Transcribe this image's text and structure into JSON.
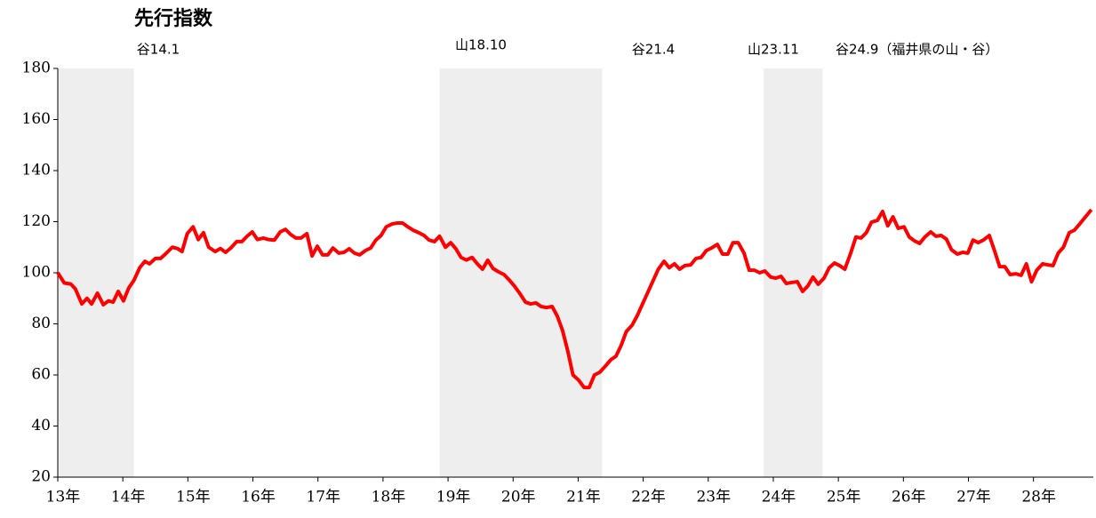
{
  "chart_data": {
    "type": "line",
    "title": "先行指数",
    "annotations": [
      "谷14.1",
      "山18.10",
      "谷21.4",
      "山23.11",
      "谷24.9（福井県の山・谷）"
    ],
    "shaded_periods": [
      [
        13,
        14.17
      ],
      [
        18.87,
        21.37
      ],
      [
        23.85,
        24.76
      ]
    ],
    "shade_color": "#eeeeee",
    "color": "#ff0000",
    "xlim": [
      13,
      28.92
    ],
    "xticks": [
      {
        "value": 13,
        "label": "13年"
      },
      {
        "value": 14,
        "label": "14年"
      },
      {
        "value": 15,
        "label": "15年"
      },
      {
        "value": 16,
        "label": "16年"
      },
      {
        "value": 17,
        "label": "17年"
      },
      {
        "value": 18,
        "label": "18年"
      },
      {
        "value": 19,
        "label": "19年"
      },
      {
        "value": 20,
        "label": "20年"
      },
      {
        "value": 21,
        "label": "21年"
      },
      {
        "value": 22,
        "label": "22年"
      },
      {
        "value": 23,
        "label": "23年"
      },
      {
        "value": 24,
        "label": "24年"
      },
      {
        "value": 25,
        "label": "25年"
      },
      {
        "value": 26,
        "label": "26年"
      },
      {
        "value": 27,
        "label": "27年"
      },
      {
        "value": 28,
        "label": "28年"
      }
    ],
    "ylim": [
      20,
      180
    ],
    "yticks": [
      20,
      40,
      60,
      80,
      100,
      120,
      140,
      160,
      180
    ],
    "x": [
      13.0,
      13.1,
      13.2,
      13.27,
      13.37,
      13.45,
      13.52,
      13.61,
      13.7,
      13.78,
      13.85,
      13.93,
      14.01,
      14.09,
      14.17,
      14.26,
      14.34,
      14.41,
      14.5,
      14.58,
      14.67,
      14.76,
      14.84,
      14.91,
      14.99,
      15.08,
      15.16,
      15.24,
      15.32,
      15.42,
      15.5,
      15.58,
      15.66,
      15.75,
      15.83,
      15.91,
      15.99,
      16.07,
      16.16,
      16.24,
      16.33,
      16.42,
      16.5,
      16.58,
      16.66,
      16.74,
      16.83,
      16.91,
      16.99,
      17.07,
      17.15,
      17.23,
      17.32,
      17.4,
      17.48,
      17.56,
      17.64,
      17.73,
      17.81,
      17.89,
      17.97,
      18.05,
      18.14,
      18.22,
      18.3,
      18.38,
      18.46,
      18.55,
      18.63,
      18.71,
      18.79,
      18.87,
      18.96,
      19.04,
      19.12,
      19.2,
      19.28,
      19.37,
      19.45,
      19.53,
      19.61,
      19.69,
      19.78,
      19.86,
      19.94,
      20.02,
      20.1,
      20.19,
      20.27,
      20.35,
      20.43,
      20.51,
      20.6,
      20.68,
      20.76,
      20.84,
      20.92,
      21.01,
      21.09,
      21.17,
      21.25,
      21.33,
      21.42,
      21.5,
      21.58,
      21.66,
      21.74,
      21.83,
      21.91,
      21.99,
      22.07,
      22.15,
      22.23,
      22.32,
      22.4,
      22.48,
      22.56,
      22.64,
      22.73,
      22.81,
      22.89,
      22.97,
      23.05,
      23.14,
      23.22,
      23.3,
      23.38,
      23.46,
      23.55,
      23.63,
      23.71,
      23.79,
      23.87,
      23.96,
      24.04,
      24.12,
      24.2,
      24.28,
      24.37,
      24.45,
      24.53,
      24.61,
      24.69,
      24.78,
      24.86,
      24.94,
      25.02,
      25.1,
      25.19,
      25.27,
      25.35,
      25.43,
      25.51,
      25.6,
      25.68,
      25.76,
      25.84,
      25.92,
      26.01,
      26.09,
      26.17,
      26.25,
      26.33,
      26.42,
      26.5,
      26.58,
      26.66,
      26.74,
      26.83,
      26.91,
      26.99,
      27.07,
      27.15,
      27.23,
      27.32,
      27.4,
      27.48,
      27.56,
      27.64,
      27.73,
      27.81,
      27.89,
      27.97,
      28.05,
      28.14,
      28.22,
      28.3,
      28.38,
      28.46,
      28.55,
      28.63,
      28.71,
      28.79,
      28.89
    ],
    "values": [
      100,
      96,
      95.6,
      93.7,
      87.8,
      90,
      87.8,
      92,
      87.5,
      89,
      88.5,
      92.7,
      89,
      94,
      97,
      102,
      104.5,
      103.5,
      105.6,
      105.6,
      107.7,
      110,
      109.5,
      108.3,
      115.3,
      118,
      113,
      115.7,
      110,
      108.3,
      109.5,
      108,
      109.7,
      112.2,
      112.2,
      114.3,
      116,
      113,
      113.6,
      113,
      112.8,
      116,
      117,
      115,
      113.6,
      113.6,
      115.3,
      106.6,
      110.4,
      107,
      107,
      109.7,
      107.7,
      108,
      109.4,
      107.7,
      107,
      108.7,
      109.7,
      112.8,
      114.6,
      118,
      119.1,
      119.5,
      119.5,
      118,
      116.7,
      115.7,
      114.6,
      112.8,
      112.2,
      114.3,
      110,
      111.8,
      109.4,
      106,
      105,
      106,
      103.5,
      101.4,
      104.9,
      101.7,
      100.3,
      99.3,
      97.2,
      94.8,
      92,
      88.5,
      87.8,
      88.2,
      86.8,
      86.4,
      86.8,
      83,
      77.4,
      69.4,
      60,
      57.9,
      55.1,
      55.1,
      60,
      61,
      63.5,
      65.9,
      67.3,
      71.5,
      77,
      79.5,
      83.3,
      87.8,
      92.3,
      96.8,
      101.3,
      104.5,
      102,
      103.5,
      101.4,
      102.8,
      103.1,
      105.6,
      106,
      108.7,
      109.7,
      111.1,
      107.3,
      107.3,
      111.8,
      111.8,
      107.7,
      101,
      101,
      100,
      100.7,
      98.3,
      97.9,
      98.6,
      95.8,
      96.2,
      96.5,
      92.7,
      94.8,
      98.3,
      95.5,
      97.9,
      102,
      103.8,
      102.8,
      101.4,
      107.7,
      114,
      113.6,
      115.7,
      119.8,
      120.5,
      124,
      118.4,
      121.9,
      117.4,
      118,
      114,
      112.5,
      111.5,
      114,
      116,
      114.3,
      114.6,
      113.2,
      109,
      107.3,
      108,
      107.7,
      112.8,
      111.8,
      112.8,
      114.6,
      108.7,
      102.4,
      102.4,
      99.3,
      99.6,
      99,
      103.5,
      96.5,
      101,
      103.5,
      103.1,
      102.8,
      107.7,
      110,
      115.7,
      116.7,
      119.1,
      121.6,
      124.7
    ]
  }
}
